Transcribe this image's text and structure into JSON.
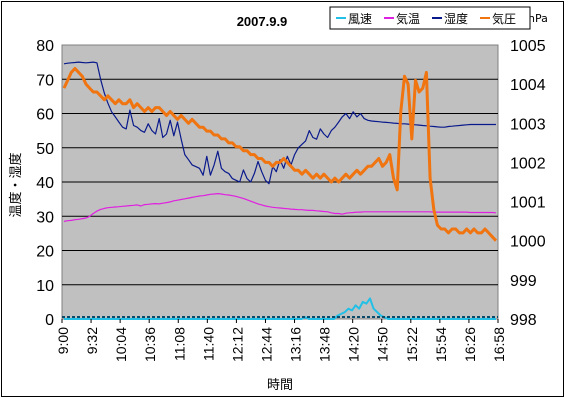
{
  "chart_data": {
    "type": "line",
    "title": "2007.9.9",
    "xlabel": "時間",
    "ylabel": "温度・湿度",
    "y2label": "hPa",
    "x_ticks": [
      "9:00",
      "9:32",
      "10:04",
      "10:36",
      "11:08",
      "11:40",
      "12:12",
      "12:44",
      "13:16",
      "13:48",
      "14:20",
      "14:50",
      "15:22",
      "15:54",
      "16:26",
      "16:58"
    ],
    "ylim": [
      0,
      80
    ],
    "yticks": [
      "0",
      "10",
      "20",
      "30",
      "40",
      "50",
      "60",
      "70",
      "80"
    ],
    "y2lim": [
      998,
      1005
    ],
    "y2ticks": [
      "998",
      "999",
      "1000",
      "1001",
      "1002",
      "1003",
      "1004",
      "1005"
    ],
    "grid": true,
    "legend_position": "top-right",
    "series": [
      {
        "name": "風速",
        "axis": "left",
        "color": "#22bfe6",
        "values": [
          0,
          0,
          0,
          0,
          0,
          0,
          0,
          0,
          0,
          0,
          0,
          0,
          0,
          0,
          0,
          0,
          0,
          0,
          0,
          0,
          0,
          0,
          0,
          0,
          0,
          0,
          0,
          0,
          0,
          0,
          0,
          0,
          0,
          0,
          0,
          0,
          0,
          0,
          0,
          0,
          0,
          0,
          0,
          0,
          0,
          0,
          0,
          0,
          0,
          0,
          0,
          0,
          0,
          0,
          0,
          0,
          0,
          0,
          0,
          0,
          0,
          0,
          0,
          0,
          0,
          0,
          0,
          0.5,
          0,
          0,
          0,
          0,
          0,
          0,
          0,
          0,
          1,
          1.5,
          2,
          3,
          2.5,
          4,
          3,
          5,
          4.5,
          6,
          3,
          2,
          1,
          0.5,
          0,
          0,
          0,
          0,
          0,
          0,
          0,
          0,
          0,
          0,
          0,
          0,
          0,
          0,
          0,
          0,
          0,
          0,
          0,
          0,
          0,
          0,
          0,
          0,
          0,
          0,
          0,
          0,
          0,
          0,
          0
        ]
      },
      {
        "name": "気温",
        "axis": "left",
        "color": "#e020e0",
        "values": [
          28.5,
          28.7,
          28.8,
          29.0,
          29.1,
          29.3,
          29.5,
          30.0,
          30.8,
          31.5,
          32.0,
          32.3,
          32.5,
          32.6,
          32.7,
          32.8,
          32.9,
          33.0,
          33.1,
          33.2,
          33.3,
          33.0,
          33.4,
          33.5,
          33.6,
          33.7,
          33.6,
          33.8,
          34.0,
          34.2,
          34.5,
          34.7,
          34.9,
          35.1,
          35.3,
          35.5,
          35.7,
          35.9,
          36.0,
          36.2,
          36.4,
          36.5,
          36.6,
          36.5,
          36.3,
          36.2,
          36.0,
          35.8,
          35.5,
          35.2,
          34.8,
          34.4,
          34.0,
          33.6,
          33.3,
          33.0,
          32.8,
          32.6,
          32.5,
          32.4,
          32.3,
          32.2,
          32.1,
          32.0,
          31.9,
          31.9,
          31.8,
          31.7,
          31.7,
          31.6,
          31.5,
          31.4,
          31.3,
          31.0,
          30.8,
          30.8,
          30.6,
          30.9,
          31.0,
          31.1,
          31.2,
          31.2,
          31.3,
          31.3,
          31.3,
          31.3,
          31.3,
          31.3,
          31.3,
          31.3,
          31.3,
          31.3,
          31.3,
          31.3,
          31.3,
          31.3,
          31.3,
          31.3,
          31.3,
          31.3,
          31.3,
          31.2,
          31.2,
          31.2,
          31.2,
          31.2,
          31.2,
          31.2,
          31.2,
          31.2,
          31.2,
          31.1,
          31.1,
          31.1,
          31.1,
          31.1,
          31.1,
          31.1,
          31.0
        ]
      },
      {
        "name": "湿度",
        "axis": "left",
        "color": "#0a1a8c",
        "values": [
          74.5,
          74.7,
          74.8,
          74.9,
          75.0,
          74.9,
          74.8,
          74.9,
          75.0,
          74.8,
          70.0,
          66.0,
          63.0,
          60.5,
          59.0,
          57.5,
          56.0,
          55.5,
          61.0,
          56.5,
          56.0,
          55.0,
          54.5,
          57.0,
          55.0,
          54.0,
          58.5,
          53.0,
          54.0,
          58.0,
          53.5,
          57.5,
          52.5,
          48.0,
          46.5,
          45.0,
          44.5,
          44.0,
          42.0,
          47.5,
          42.0,
          45.0,
          49.0,
          44.0,
          43.0,
          42.5,
          41.0,
          40.5,
          40.0,
          43.5,
          41.0,
          40.0,
          42.5,
          46.0,
          43.0,
          40.5,
          39.5,
          44.5,
          43.0,
          46.5,
          44.0,
          47.5,
          45.0,
          48.0,
          50.0,
          51.0,
          52.0,
          55.0,
          53.0,
          52.5,
          55.5,
          54.0,
          53.0,
          55.0,
          56.0,
          57.5,
          59.0,
          60.0,
          58.5,
          60.5,
          59.0,
          60.0,
          58.5,
          58.0,
          57.8,
          57.7,
          57.6,
          57.5,
          57.4,
          57.3,
          57.2,
          57.1,
          57.0,
          57.0,
          56.9,
          56.8,
          56.7,
          56.6,
          56.5,
          56.4,
          56.3,
          56.2,
          56.1,
          56.0,
          56.0,
          56.2,
          56.3,
          56.4,
          56.5,
          56.6,
          56.7,
          56.8,
          56.8,
          56.8,
          56.8,
          56.8,
          56.8,
          56.8,
          56.8
        ]
      },
      {
        "name": "気圧",
        "axis": "right",
        "color": "#f07410",
        "values": [
          1003.9,
          1004.1,
          1004.3,
          1004.4,
          1004.3,
          1004.2,
          1004.0,
          1003.9,
          1003.8,
          1003.8,
          1003.7,
          1003.6,
          1003.7,
          1003.6,
          1003.5,
          1003.6,
          1003.5,
          1003.5,
          1003.6,
          1003.4,
          1003.5,
          1003.4,
          1003.3,
          1003.4,
          1003.3,
          1003.4,
          1003.4,
          1003.3,
          1003.2,
          1003.3,
          1003.2,
          1003.1,
          1003.2,
          1003.1,
          1003.0,
          1003.1,
          1003.0,
          1002.9,
          1002.9,
          1002.8,
          1002.8,
          1002.7,
          1002.7,
          1002.6,
          1002.6,
          1002.5,
          1002.5,
          1002.4,
          1002.4,
          1002.3,
          1002.3,
          1002.2,
          1002.2,
          1002.1,
          1002.1,
          1002.0,
          1002.0,
          1001.9,
          1002.0,
          1002.0,
          1002.1,
          1002.0,
          1001.9,
          1001.8,
          1001.8,
          1001.7,
          1001.8,
          1001.7,
          1001.6,
          1001.7,
          1001.6,
          1001.7,
          1001.6,
          1001.5,
          1001.6,
          1001.5,
          1001.6,
          1001.7,
          1001.6,
          1001.7,
          1001.8,
          1001.7,
          1001.8,
          1001.9,
          1001.9,
          1002.0,
          1002.1,
          1001.9,
          1002.0,
          1002.2,
          1001.6,
          1001.3,
          1003.3,
          1004.2,
          1004.0,
          1002.6,
          1004.1,
          1003.8,
          1003.9,
          1004.3,
          1001.6,
          1000.8,
          1000.4,
          1000.3,
          1000.3,
          1000.2,
          1000.3,
          1000.3,
          1000.2,
          1000.2,
          1000.3,
          1000.2,
          1000.3,
          1000.2,
          1000.2,
          1000.3,
          1000.2,
          1000.1,
          1000.0
        ]
      }
    ]
  }
}
